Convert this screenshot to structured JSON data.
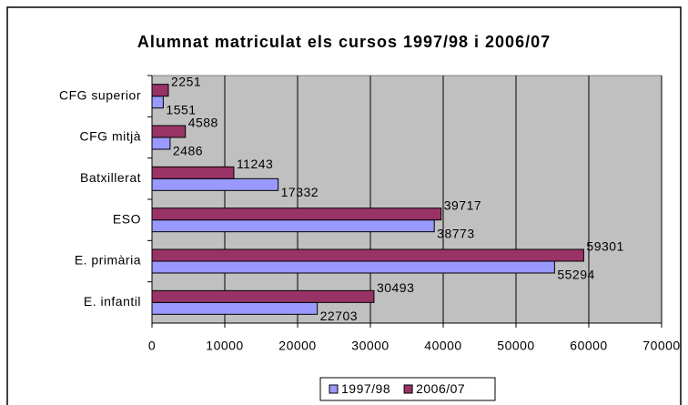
{
  "chart_data": {
    "type": "barh",
    "title": "Alumnat matriculat els cursos 1997/98 i 2006/07",
    "categories": [
      "CFG superior",
      "CFG mitjà",
      "Batxillerat",
      "ESO",
      "E. primària",
      "E. infantil"
    ],
    "series": [
      {
        "name": "1997/98",
        "color": "#9999ff",
        "values": [
          1551,
          2486,
          17332,
          38773,
          55294,
          22703
        ]
      },
      {
        "name": "2006/07",
        "color": "#993366",
        "values": [
          2251,
          4588,
          11243,
          39717,
          59301,
          30493
        ]
      }
    ],
    "xlim": [
      0,
      70000
    ],
    "xticks": [
      0,
      10000,
      20000,
      30000,
      40000,
      50000,
      60000,
      70000
    ],
    "grid": true,
    "legend": "bottom"
  }
}
